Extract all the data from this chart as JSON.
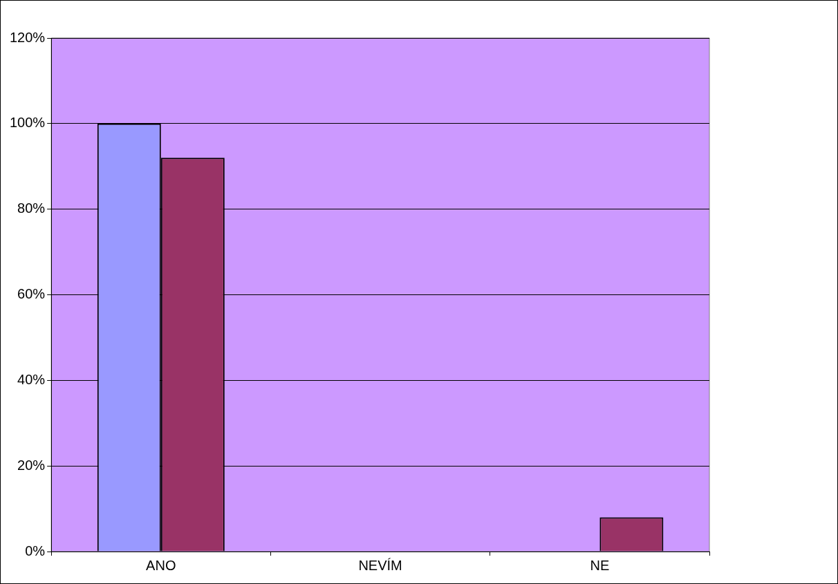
{
  "chart_data": {
    "type": "bar",
    "categories": [
      "ANO",
      "NEVÍM",
      "NE"
    ],
    "series": [
      {
        "color": "#9999ff",
        "values": [
          100,
          0,
          0
        ]
      },
      {
        "color": "#993366",
        "values": [
          92,
          0,
          8
        ]
      }
    ],
    "ylim": [
      0,
      120
    ],
    "yticks": [
      {
        "value": 0,
        "label": "0%"
      },
      {
        "value": 20,
        "label": "20%"
      },
      {
        "value": 40,
        "label": "40%"
      },
      {
        "value": 60,
        "label": "60%"
      },
      {
        "value": 80,
        "label": "80%"
      },
      {
        "value": 100,
        "label": "100%"
      },
      {
        "value": 120,
        "label": "120%"
      }
    ],
    "grid": "y"
  }
}
